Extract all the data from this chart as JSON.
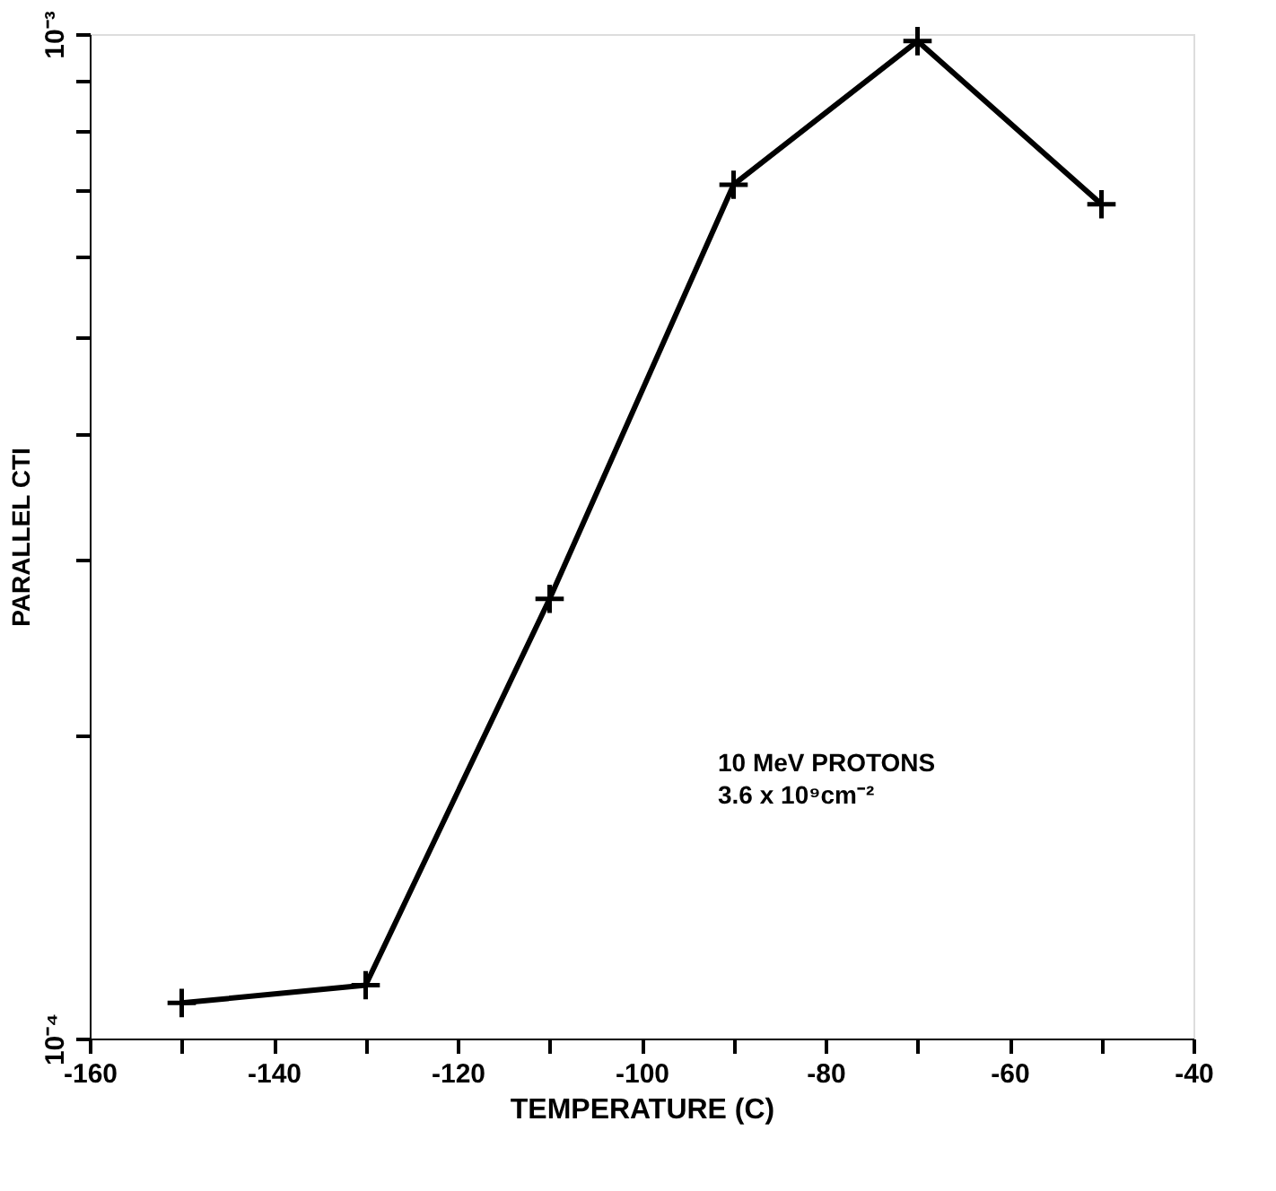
{
  "chart_data": {
    "type": "line",
    "xlabel": "TEMPERATURE (C)",
    "ylabel": "PARALLEL CTI",
    "x": [
      -150,
      -130,
      -110,
      -90,
      -70,
      -50
    ],
    "series": [
      {
        "color": "#000000",
        "values": [
          0.0001085,
          0.000113,
          0.000274,
          0.000708,
          0.000984,
          0.000677
        ]
      }
    ],
    "xlim": [
      -160,
      -40
    ],
    "xticks": [
      -160,
      {
        "value": -150,
        "label": null
      },
      -140,
      {
        "value": -130,
        "label": null
      },
      -120,
      {
        "value": -110,
        "label": null
      },
      -100,
      {
        "value": -90,
        "label": null
      },
      -80,
      {
        "value": -70,
        "label": null
      },
      -60,
      {
        "value": -50,
        "label": null
      },
      -40
    ],
    "ylim": [
      0.0001,
      0.001
    ],
    "yticks": [
      {
        "value": 0.0001,
        "label": "10⁻⁴"
      },
      {
        "value": 0.0002,
        "label": null
      },
      {
        "value": 0.0003,
        "label": null
      },
      {
        "value": 0.0004,
        "label": null
      },
      {
        "value": 0.0005,
        "label": null
      },
      {
        "value": 0.0006,
        "label": null
      },
      {
        "value": 0.0007,
        "label": null
      },
      {
        "value": 0.0008,
        "label": null
      },
      {
        "value": 0.0009,
        "label": null
      },
      {
        "value": 0.001,
        "label": "10⁻³"
      }
    ],
    "log": true,
    "marker": "cross",
    "line_style": "solid",
    "annotations": [
      "10 MeV PROTONS",
      "3.6 x 10⁹cm⁻²"
    ]
  }
}
